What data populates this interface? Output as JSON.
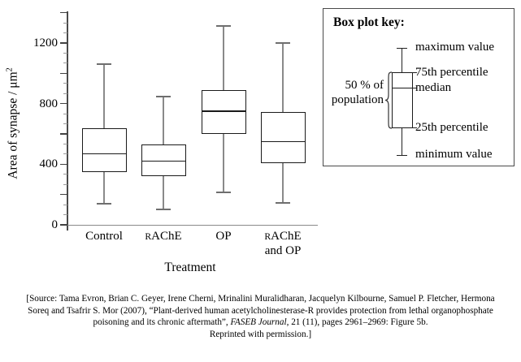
{
  "chart_data": {
    "type": "box",
    "title": "",
    "xlabel": "Treatment",
    "ylabel": "Area of synapse / μm²",
    "ylim": [
      0,
      1400
    ],
    "grid": false,
    "y_ticks_labeled": [
      {
        "text": "0",
        "value": 0
      },
      {
        "text": "400",
        "value": 400
      },
      {
        "text": "800",
        "value": 800
      },
      {
        "text": "1200",
        "value": 1200
      }
    ],
    "y_major_tick_step": 200,
    "y_minor_ticks_between_majors": 2,
    "categories": [
      "Control",
      "rAChE",
      "OP",
      "rAChE and OP"
    ],
    "series": [
      {
        "name": "Control",
        "min": 140,
        "q1": 350,
        "median": 470,
        "q3": 640,
        "max": 1060
      },
      {
        "name": "rAChE",
        "min": 100,
        "q1": 320,
        "median": 420,
        "q3": 530,
        "max": 845
      },
      {
        "name": "OP",
        "min": 215,
        "q1": 600,
        "median": 750,
        "q3": 890,
        "max": 1310
      },
      {
        "name": "rAChE and OP",
        "min": 145,
        "q1": 405,
        "median": 550,
        "q3": 745,
        "max": 1200
      }
    ]
  },
  "y_axis": {
    "label_main": "Area of synapse / μm",
    "label_sup": "2"
  },
  "x_axis": {
    "title": "Treatment",
    "labels": [
      {
        "lines": [
          [
            {
              "text": "Control",
              "small": false
            }
          ]
        ]
      },
      {
        "lines": [
          [
            {
              "text": "R",
              "small": true
            },
            {
              "text": "AChE",
              "small": false
            }
          ]
        ]
      },
      {
        "lines": [
          [
            {
              "text": "OP",
              "small": false
            }
          ]
        ]
      },
      {
        "lines": [
          [
            {
              "text": "R",
              "small": true
            },
            {
              "text": "AChE",
              "small": false
            }
          ],
          [
            {
              "text": "and OP",
              "small": false
            }
          ]
        ]
      }
    ]
  },
  "key": {
    "title": "Box plot key:",
    "max_label": "maximum value",
    "q3_label": "75th percentile",
    "median_label": "median",
    "q1_label": "25th percentile",
    "min_label": "minimum value",
    "population_label_line1": "50 % of",
    "population_label_line2": "population"
  },
  "citation": {
    "line1": "[Source: Tama Evron, Brian C. Geyer, Irene Cherni, Mrinalini Muralidharan, Jacquelyn Kilbourne, Samuel P. Fletcher, Hermona",
    "line2": "Soreq and Tsafrir S. Mor (2007), “Plant-derived human acetylcholinesterase-R provides protection from lethal organophosphate",
    "line3_pre": "poisoning and its chronic aftermath”, ",
    "line3_italic": "FASEB Journal",
    "line3_post": ", 21 (11), pages 2961–2969: Figure 5b.",
    "line4": "Reprinted with permission.]"
  },
  "colors": {
    "box_stroke": "#1a1a1a",
    "whisker_line": "#8a8a8a",
    "whisker_cap": "#6e6e6e",
    "x_axis_line": "#8a8a8a",
    "y_axis_line": "#4a4a4a",
    "major_tick": "#404040",
    "minor_tick": "#9a9a9a",
    "key_border": "#4a4a4a"
  }
}
